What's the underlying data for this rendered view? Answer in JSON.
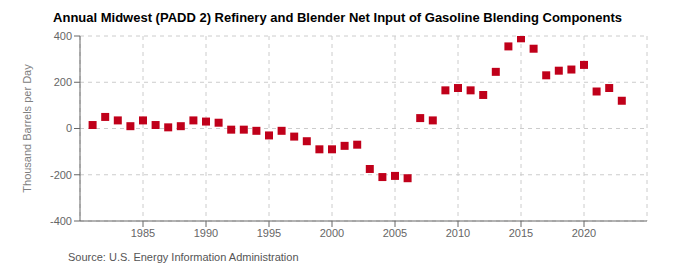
{
  "chart_data": {
    "type": "scatter",
    "title": "Annual Midwest (PADD 2) Refinery and Blender Net Input of Gasoline Blending Components",
    "ylabel": "Thousand Barrels per Day",
    "annotation": "Source: U.S. Energy Information Administration",
    "x": [
      1981,
      1982,
      1983,
      1984,
      1985,
      1986,
      1987,
      1988,
      1989,
      1990,
      1991,
      1992,
      1993,
      1994,
      1995,
      1996,
      1997,
      1998,
      1999,
      2000,
      2001,
      2002,
      2003,
      2004,
      2005,
      2006,
      2007,
      2008,
      2009,
      2010,
      2011,
      2012,
      2013,
      2014,
      2015,
      2016,
      2017,
      2018,
      2019,
      2020,
      2021,
      2022,
      2023
    ],
    "values": [
      15,
      50,
      35,
      10,
      35,
      15,
      5,
      10,
      35,
      30,
      25,
      -5,
      -5,
      -10,
      -30,
      -10,
      -35,
      -55,
      -90,
      -90,
      -75,
      -70,
      -175,
      -210,
      -205,
      -215,
      45,
      35,
      165,
      175,
      165,
      145,
      245,
      355,
      390,
      345,
      230,
      250,
      255,
      275,
      160,
      175,
      120
    ],
    "color": "#c0001a",
    "marker": "square",
    "xlim": [
      1980,
      2025
    ],
    "xticks": [
      1985,
      1990,
      1995,
      2000,
      2005,
      2010,
      2015,
      2020
    ],
    "ylim": [
      -400,
      400
    ],
    "yticks": [
      -400,
      -200,
      0,
      200,
      400
    ],
    "grid": true
  }
}
